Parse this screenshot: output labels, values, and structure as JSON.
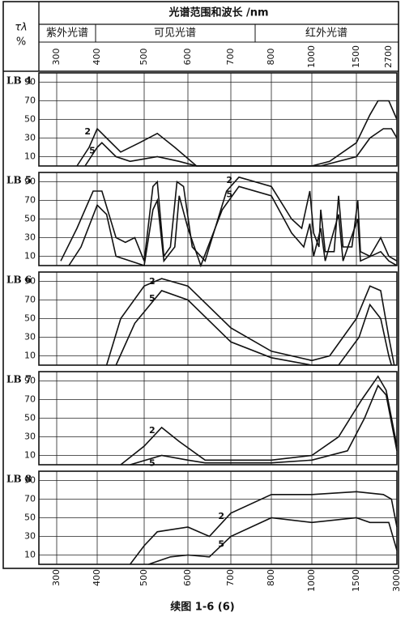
{
  "header": {
    "symbol": "τλ",
    "unit": "%",
    "title": "光谱范围和波长 /nm",
    "regions": [
      "紫外光谱",
      "可见光谱",
      "红外光谱"
    ],
    "top_xticks": [
      300,
      400,
      500,
      600,
      700,
      800,
      1000,
      1500,
      2700
    ]
  },
  "chart_data": [
    {
      "type": "line",
      "title": "LB 4",
      "xlim": [
        250,
        3000
      ],
      "ylim": [
        0,
        100
      ],
      "yticks": [
        10,
        30,
        50,
        70,
        90
      ],
      "series": [
        {
          "name": "2",
          "color": "#111",
          "x": [
            350,
            380,
            400,
            420,
            450,
            490,
            530,
            570,
            620,
            1000,
            1200,
            1500,
            2000,
            2300,
            2700,
            3000
          ],
          "values": [
            0,
            20,
            40,
            30,
            15,
            25,
            35,
            20,
            0,
            0,
            5,
            25,
            55,
            70,
            70,
            50
          ]
        },
        {
          "name": "5",
          "color": "#111",
          "x": [
            370,
            400,
            410,
            440,
            470,
            530,
            580,
            620,
            1100,
            1500,
            2000,
            2500,
            2800,
            3000
          ],
          "values": [
            0,
            20,
            25,
            10,
            5,
            10,
            5,
            0,
            0,
            10,
            30,
            40,
            40,
            30
          ]
        }
      ]
    },
    {
      "type": "line",
      "title": "LB 5",
      "xlim": [
        250,
        3000
      ],
      "ylim": [
        0,
        100
      ],
      "yticks": [
        10,
        30,
        50,
        70,
        90
      ],
      "series": [
        {
          "name": "2",
          "color": "#111",
          "x": [
            310,
            350,
            390,
            410,
            440,
            460,
            480,
            500,
            520,
            530,
            545,
            560,
            575,
            590,
            610,
            640,
            690,
            720,
            800,
            900,
            950,
            990,
            1020,
            1080,
            1100,
            1150,
            1250,
            1300,
            1350,
            1450,
            1550,
            1650,
            2000,
            2400,
            2700,
            3000
          ],
          "values": [
            5,
            40,
            80,
            80,
            30,
            25,
            30,
            5,
            85,
            90,
            10,
            20,
            90,
            85,
            20,
            5,
            80,
            95,
            85,
            50,
            40,
            80,
            35,
            20,
            60,
            15,
            15,
            75,
            20,
            20,
            70,
            15,
            10,
            30,
            10,
            5
          ]
        },
        {
          "name": "5",
          "color": "#111",
          "x": [
            330,
            360,
            400,
            420,
            440,
            470,
            500,
            520,
            530,
            545,
            570,
            580,
            600,
            630,
            680,
            720,
            800,
            900,
            960,
            990,
            1020,
            1100,
            1150,
            1300,
            1350,
            1550,
            1650,
            2400,
            2700,
            3000
          ],
          "values": [
            0,
            20,
            65,
            55,
            10,
            5,
            0,
            60,
            70,
            5,
            20,
            75,
            40,
            0,
            60,
            85,
            75,
            35,
            20,
            45,
            10,
            40,
            5,
            55,
            5,
            50,
            5,
            15,
            5,
            0
          ]
        }
      ]
    },
    {
      "type": "line",
      "title": "LB 6",
      "xlim": [
        250,
        3000
      ],
      "ylim": [
        0,
        100
      ],
      "yticks": [
        10,
        30,
        50,
        70,
        90
      ],
      "series": [
        {
          "name": "2",
          "color": "#111",
          "x": [
            420,
            450,
            500,
            540,
            600,
            700,
            800,
            1000,
            1200,
            1500,
            2000,
            2400,
            2700,
            2900
          ],
          "values": [
            0,
            50,
            85,
            93,
            85,
            40,
            15,
            5,
            10,
            50,
            85,
            80,
            30,
            0
          ]
        },
        {
          "name": "5",
          "color": "#111",
          "x": [
            440,
            480,
            540,
            600,
            700,
            800,
            1000,
            1300,
            1600,
            2000,
            2400,
            2700,
            2800
          ],
          "values": [
            0,
            45,
            80,
            70,
            25,
            8,
            0,
            0,
            30,
            65,
            50,
            10,
            0
          ]
        }
      ]
    },
    {
      "type": "line",
      "title": "LB 7",
      "xlim": [
        250,
        3000
      ],
      "ylim": [
        0,
        100
      ],
      "yticks": [
        10,
        30,
        50,
        70,
        90
      ],
      "series": [
        {
          "name": "2",
          "color": "#111",
          "x": [
            450,
            500,
            540,
            580,
            640,
            800,
            1000,
            1300,
            1700,
            2300,
            2600,
            3000
          ],
          "values": [
            0,
            20,
            40,
            25,
            5,
            5,
            10,
            30,
            70,
            95,
            80,
            20
          ]
        },
        {
          "name": "5",
          "color": "#111",
          "x": [
            470,
            540,
            600,
            640,
            800,
            1000,
            1400,
            1800,
            2300,
            2600,
            3000
          ],
          "values": [
            0,
            10,
            5,
            2,
            2,
            5,
            15,
            50,
            85,
            75,
            15
          ]
        }
      ]
    },
    {
      "type": "line",
      "title": "LB 8",
      "xlim": [
        250,
        3000
      ],
      "ylim": [
        0,
        100
      ],
      "yticks": [
        10,
        30,
        50,
        70,
        90
      ],
      "xticks": [
        300,
        400,
        500,
        600,
        700,
        800,
        1000,
        1500,
        3000
      ],
      "series": [
        {
          "name": "2",
          "color": "#111",
          "x": [
            470,
            500,
            530,
            600,
            650,
            700,
            800,
            1000,
            1500,
            2500,
            2800,
            3000
          ],
          "values": [
            0,
            20,
            35,
            40,
            30,
            55,
            75,
            75,
            78,
            75,
            70,
            40
          ]
        },
        {
          "name": "5",
          "color": "#111",
          "x": [
            510,
            560,
            600,
            650,
            700,
            800,
            1000,
            1500,
            2000,
            2700,
            3000
          ],
          "values": [
            0,
            8,
            10,
            8,
            30,
            50,
            45,
            50,
            45,
            45,
            15
          ]
        }
      ]
    }
  ],
  "caption": "续图 1-6 (6)"
}
